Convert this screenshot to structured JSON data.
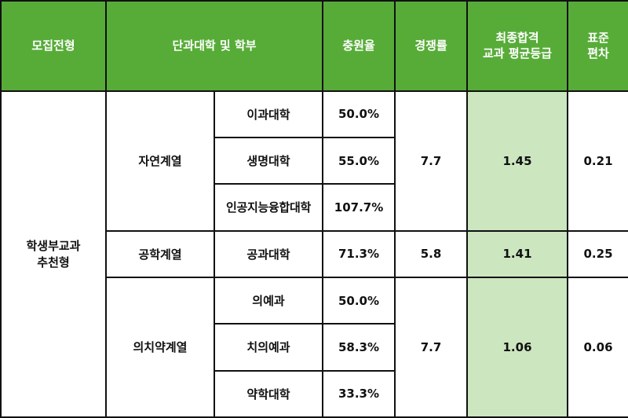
{
  "headers": {
    "type": "모집전형",
    "college": "단과대학 및 학부",
    "fill_rate": "충원율",
    "competition": "경쟁률",
    "final_grade_line1": "최종합격",
    "final_grade_line2": "교과 평균등급",
    "stddev_line1": "표준",
    "stddev_line2": "편차"
  },
  "type_line1": "학생부교과",
  "type_line2": "추천형",
  "groups": [
    {
      "name": "자연계열",
      "competition": "7.7",
      "grade": "1.45",
      "stddev": "0.21",
      "depts": [
        {
          "name": "이과대학",
          "rate": "50.0%"
        },
        {
          "name": "생명대학",
          "rate": "55.0%"
        },
        {
          "name": "인공지능융합대학",
          "rate": "107.7%"
        }
      ]
    },
    {
      "name": "공학계열",
      "competition": "5.8",
      "grade": "1.41",
      "stddev": "0.25",
      "depts": [
        {
          "name": "공과대학",
          "rate": "71.3%"
        }
      ]
    },
    {
      "name": "의치약계열",
      "competition": "7.7",
      "grade": "1.06",
      "stddev": "0.06",
      "depts": [
        {
          "name": "의예과",
          "rate": "50.0%"
        },
        {
          "name": "치의예과",
          "rate": "58.3%"
        },
        {
          "name": "약학대학",
          "rate": "33.3%"
        }
      ]
    }
  ],
  "colors": {
    "header_bg": "#57ac38",
    "grade_bg": "#cce6bf",
    "border": "#111111"
  }
}
